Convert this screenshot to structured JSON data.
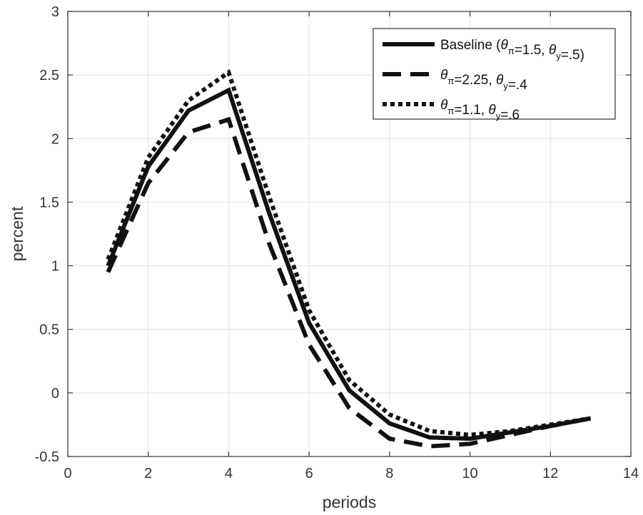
{
  "chart_data": {
    "type": "line",
    "xlabel": "periods",
    "ylabel": "percent",
    "xlim": [
      0,
      14
    ],
    "ylim": [
      -0.5,
      3
    ],
    "xticks": [
      0,
      2,
      4,
      6,
      8,
      10,
      12,
      14
    ],
    "yticks": [
      -0.5,
      0,
      0.5,
      1,
      1.5,
      2,
      2.5,
      3
    ],
    "xtick_labels": [
      "0",
      "2",
      "4",
      "6",
      "8",
      "10",
      "12",
      "14"
    ],
    "ytick_labels": [
      "-0.5",
      "0",
      "0.5",
      "1",
      "1.5",
      "2",
      "2.5",
      "3"
    ],
    "grid": true,
    "legend_position": "top-right",
    "x": [
      1,
      2,
      3,
      4,
      5,
      6,
      7,
      8,
      9,
      10,
      11,
      12,
      13
    ],
    "series": [
      {
        "name": "Baseline (θπ=1.5, θy=.5)",
        "style": "solid",
        "color": "#111111",
        "legend_parts": [
          {
            "t": "Baseline (",
            "k": "n"
          },
          {
            "t": "θ",
            "k": "sym"
          },
          {
            "t": "π",
            "k": "sub"
          },
          {
            "t": "=1.5, ",
            "k": "n"
          },
          {
            "t": "θ",
            "k": "sym"
          },
          {
            "t": "y",
            "k": "sub"
          },
          {
            "t": "=.5)",
            "k": "n"
          }
        ],
        "values": [
          1.0,
          1.78,
          2.22,
          2.38,
          1.42,
          0.55,
          0.02,
          -0.24,
          -0.35,
          -0.36,
          -0.31,
          -0.26,
          -0.2
        ]
      },
      {
        "name": "θπ=2.25, θy=.4",
        "style": "dashed",
        "color": "#111111",
        "legend_parts": [
          {
            "t": "θ",
            "k": "sym"
          },
          {
            "t": "π",
            "k": "sub"
          },
          {
            "t": "=2.25, ",
            "k": "n"
          },
          {
            "t": "θ",
            "k": "sym"
          },
          {
            "t": "y",
            "k": "sub"
          },
          {
            "t": "=.4",
            "k": "n"
          }
        ],
        "values": [
          0.95,
          1.65,
          2.05,
          2.15,
          1.18,
          0.38,
          -0.12,
          -0.36,
          -0.42,
          -0.4,
          -0.33,
          -0.26,
          -0.2
        ]
      },
      {
        "name": "θπ=1.1, θy=.6",
        "style": "dotted",
        "color": "#111111",
        "legend_parts": [
          {
            "t": "θ",
            "k": "sym"
          },
          {
            "t": "π",
            "k": "sub"
          },
          {
            "t": "=1.1, ",
            "k": "n"
          },
          {
            "t": "θ",
            "k": "sym"
          },
          {
            "t": "y",
            "k": "sub"
          },
          {
            "t": "=.6",
            "k": "n"
          }
        ],
        "values": [
          1.05,
          1.85,
          2.3,
          2.52,
          1.55,
          0.65,
          0.1,
          -0.17,
          -0.3,
          -0.33,
          -0.3,
          -0.25,
          -0.2
        ]
      }
    ]
  }
}
